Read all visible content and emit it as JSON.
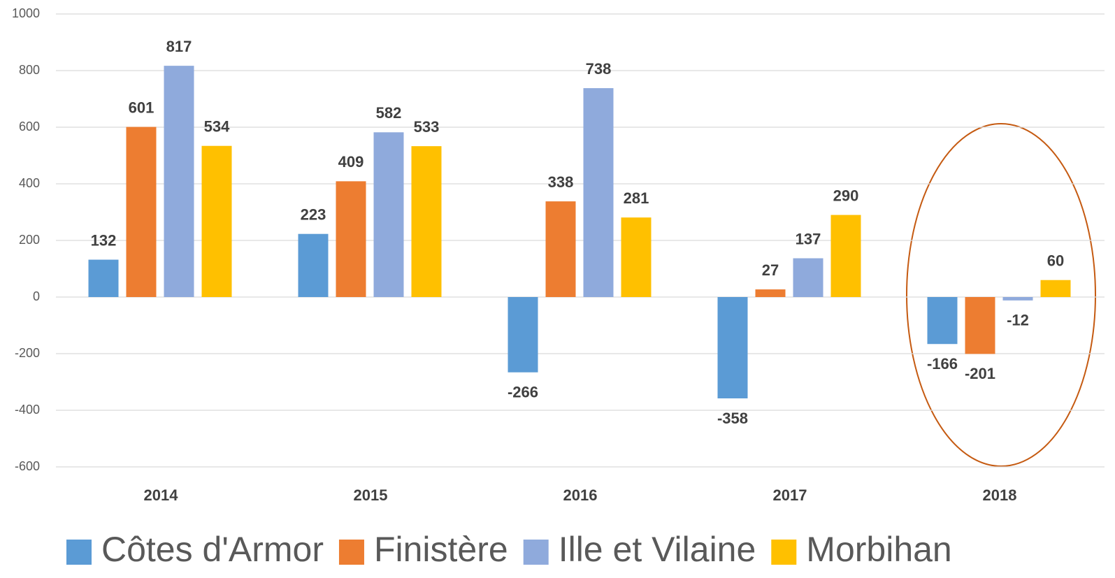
{
  "chart_data": {
    "type": "bar",
    "categories": [
      "2014",
      "2015",
      "2016",
      "2017",
      "2018"
    ],
    "series": [
      {
        "name": "Côtes d'Armor",
        "color": "#5b9bd5",
        "values": [
          132,
          223,
          -266,
          -358,
          -166
        ]
      },
      {
        "name": "Finistère",
        "color": "#ed7d31",
        "values": [
          601,
          409,
          338,
          27,
          -201
        ]
      },
      {
        "name": "Ille et Vilaine",
        "color": "#8faadc",
        "values": [
          817,
          582,
          738,
          137,
          -12
        ]
      },
      {
        "name": "Morbihan",
        "color": "#ffc000",
        "values": [
          534,
          533,
          281,
          290,
          60
        ]
      }
    ],
    "ylim": [
      -600,
      1000
    ],
    "yticks": [
      -600,
      -400,
      -200,
      0,
      200,
      400,
      600,
      800,
      1000
    ],
    "grid": true,
    "legend": "bottom"
  }
}
